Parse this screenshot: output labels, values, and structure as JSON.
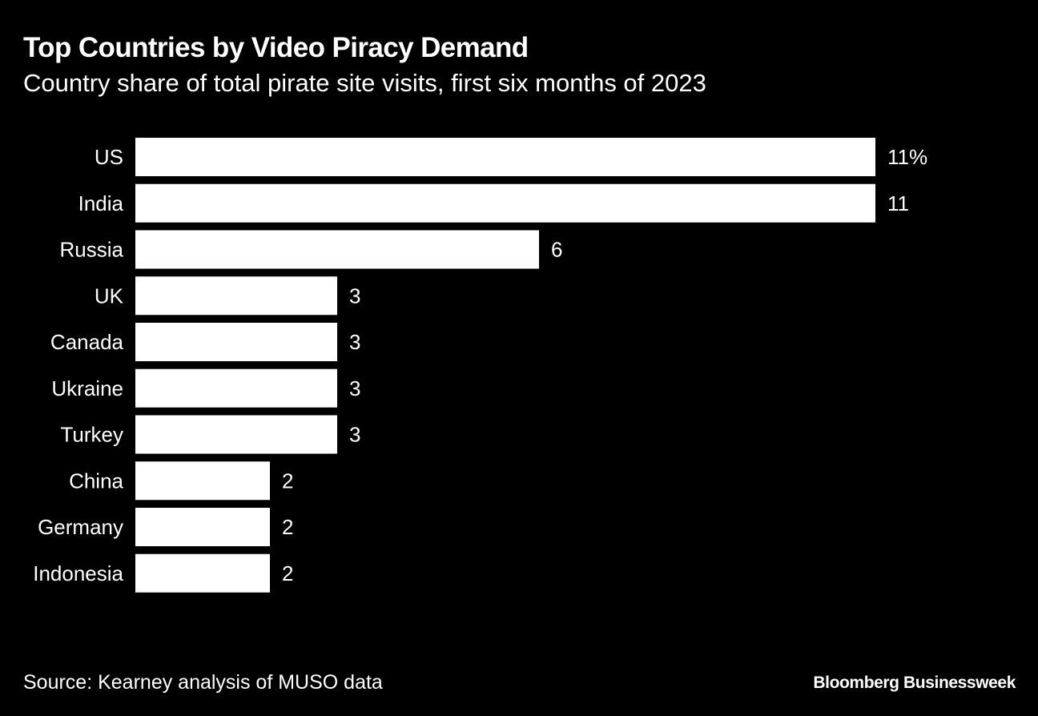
{
  "chart_data": {
    "type": "bar",
    "orientation": "horizontal",
    "title": "Top Countries by Video Piracy Demand",
    "subtitle": "Country share of total pirate site visits, first six months of 2023",
    "categories": [
      "US",
      "India",
      "Russia",
      "UK",
      "Canada",
      "Ukraine",
      "Turkey",
      "China",
      "Germany",
      "Indonesia"
    ],
    "values": [
      11,
      11,
      6,
      3,
      3,
      3,
      3,
      2,
      2,
      2
    ],
    "value_labels": [
      "11%",
      "11",
      "6",
      "3",
      "3",
      "3",
      "3",
      "2",
      "2",
      "2"
    ],
    "unit": "%",
    "xlim": [
      0,
      11
    ],
    "grid": false,
    "legend": "none",
    "bar_color": "#ffffff",
    "background_color": "#000000"
  },
  "footer": {
    "source": "Source: Kearney analysis of MUSO data",
    "brand": "Bloomberg Businessweek"
  }
}
